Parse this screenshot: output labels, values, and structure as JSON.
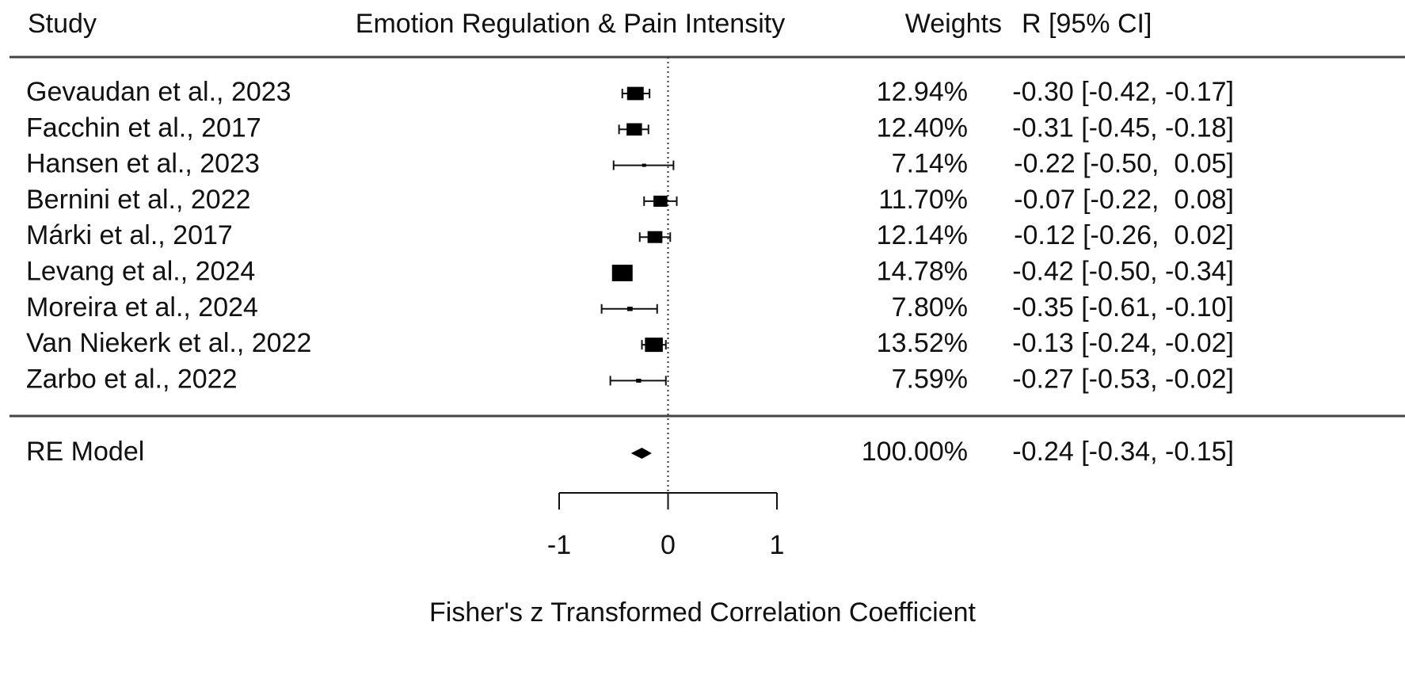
{
  "chart_data": {
    "type": "forest",
    "headers": {
      "study": "Study",
      "plot": "Emotion Regulation & Pain Intensity",
      "weights": "Weights",
      "estimate": "R [95% CI]"
    },
    "categories": [
      "Gevaudan et al., 2023",
      "Facchin et al., 2017",
      "Hansen et al., 2023",
      "Bernini et al., 2022",
      "Márki et al., 2017",
      "Levang et al., 2024",
      "Moreira et al., 2024",
      "Van Niekerk et al., 2022",
      "Zarbo et al., 2022"
    ],
    "weights": [
      12.94,
      12.4,
      7.14,
      11.7,
      12.14,
      14.78,
      7.8,
      13.52,
      7.59
    ],
    "weight_labels": [
      "12.94%",
      "12.40%",
      "7.14%",
      "11.70%",
      "12.14%",
      "14.78%",
      "7.80%",
      "13.52%",
      "7.59%"
    ],
    "estimates": [
      -0.3,
      -0.31,
      -0.22,
      -0.07,
      -0.12,
      -0.42,
      -0.35,
      -0.13,
      -0.27
    ],
    "lower": [
      -0.42,
      -0.45,
      -0.5,
      -0.22,
      -0.26,
      -0.5,
      -0.61,
      -0.24,
      -0.53
    ],
    "upper": [
      -0.17,
      -0.18,
      0.05,
      0.08,
      0.02,
      -0.34,
      -0.1,
      -0.02,
      -0.02
    ],
    "ci_labels": [
      "-0.30 [-0.42, -0.17]",
      "-0.31 [-0.45, -0.18]",
      "-0.22 [-0.50,  0.05]",
      "-0.07 [-0.22,  0.08]",
      "-0.12 [-0.26,  0.02]",
      "-0.42 [-0.50, -0.34]",
      "-0.35 [-0.61, -0.10]",
      "-0.13 [-0.24, -0.02]",
      "-0.27 [-0.53, -0.02]"
    ],
    "summary": {
      "name": "RE Model",
      "weight": 100.0,
      "weight_label": "100.00%",
      "estimate": -0.24,
      "lower": -0.34,
      "upper": -0.15,
      "ci_label": "-0.24 [-0.34, -0.15]"
    },
    "xlabel": "Fisher's z Transformed Correlation Coefficient",
    "xlim": [
      -1,
      1
    ],
    "xticks": [
      -1,
      0,
      1
    ],
    "reference_line": 0
  }
}
